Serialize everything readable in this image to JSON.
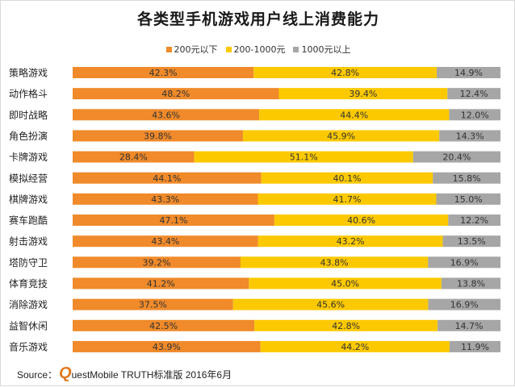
{
  "chart_data": {
    "type": "bar",
    "orientation": "horizontal",
    "stacked": true,
    "title": "各类型手机游戏用户线上消费能力",
    "categories": [
      "策略游戏",
      "动作格斗",
      "即时战略",
      "角色扮演",
      "卡牌游戏",
      "模拟经营",
      "棋牌游戏",
      "赛车跑酷",
      "射击游戏",
      "塔防守卫",
      "体育竞技",
      "消除游戏",
      "益智休闲",
      "音乐游戏"
    ],
    "series": [
      {
        "name": "200元以下",
        "color": "#f08a2a",
        "values": [
          42.3,
          48.2,
          43.6,
          39.8,
          28.4,
          44.1,
          43.3,
          47.1,
          43.4,
          39.2,
          41.2,
          37.5,
          42.5,
          43.9
        ]
      },
      {
        "name": "200-1000元",
        "color": "#fcc900",
        "values": [
          42.8,
          39.4,
          44.4,
          45.9,
          51.1,
          40.1,
          41.7,
          40.6,
          43.2,
          43.8,
          45.0,
          45.6,
          42.8,
          44.2
        ]
      },
      {
        "name": "1000元以上",
        "color": "#a6a6a6",
        "values": [
          14.9,
          12.4,
          12.0,
          14.3,
          20.4,
          15.8,
          15.0,
          12.2,
          13.5,
          16.9,
          13.8,
          16.9,
          14.7,
          11.9
        ]
      }
    ],
    "value_suffix": "%",
    "legend_position": "top",
    "grid": false
  },
  "source": {
    "prefix": "Source：",
    "q": "Q",
    "rest": "uestMobile TRUTH标准版 2016年6月"
  }
}
